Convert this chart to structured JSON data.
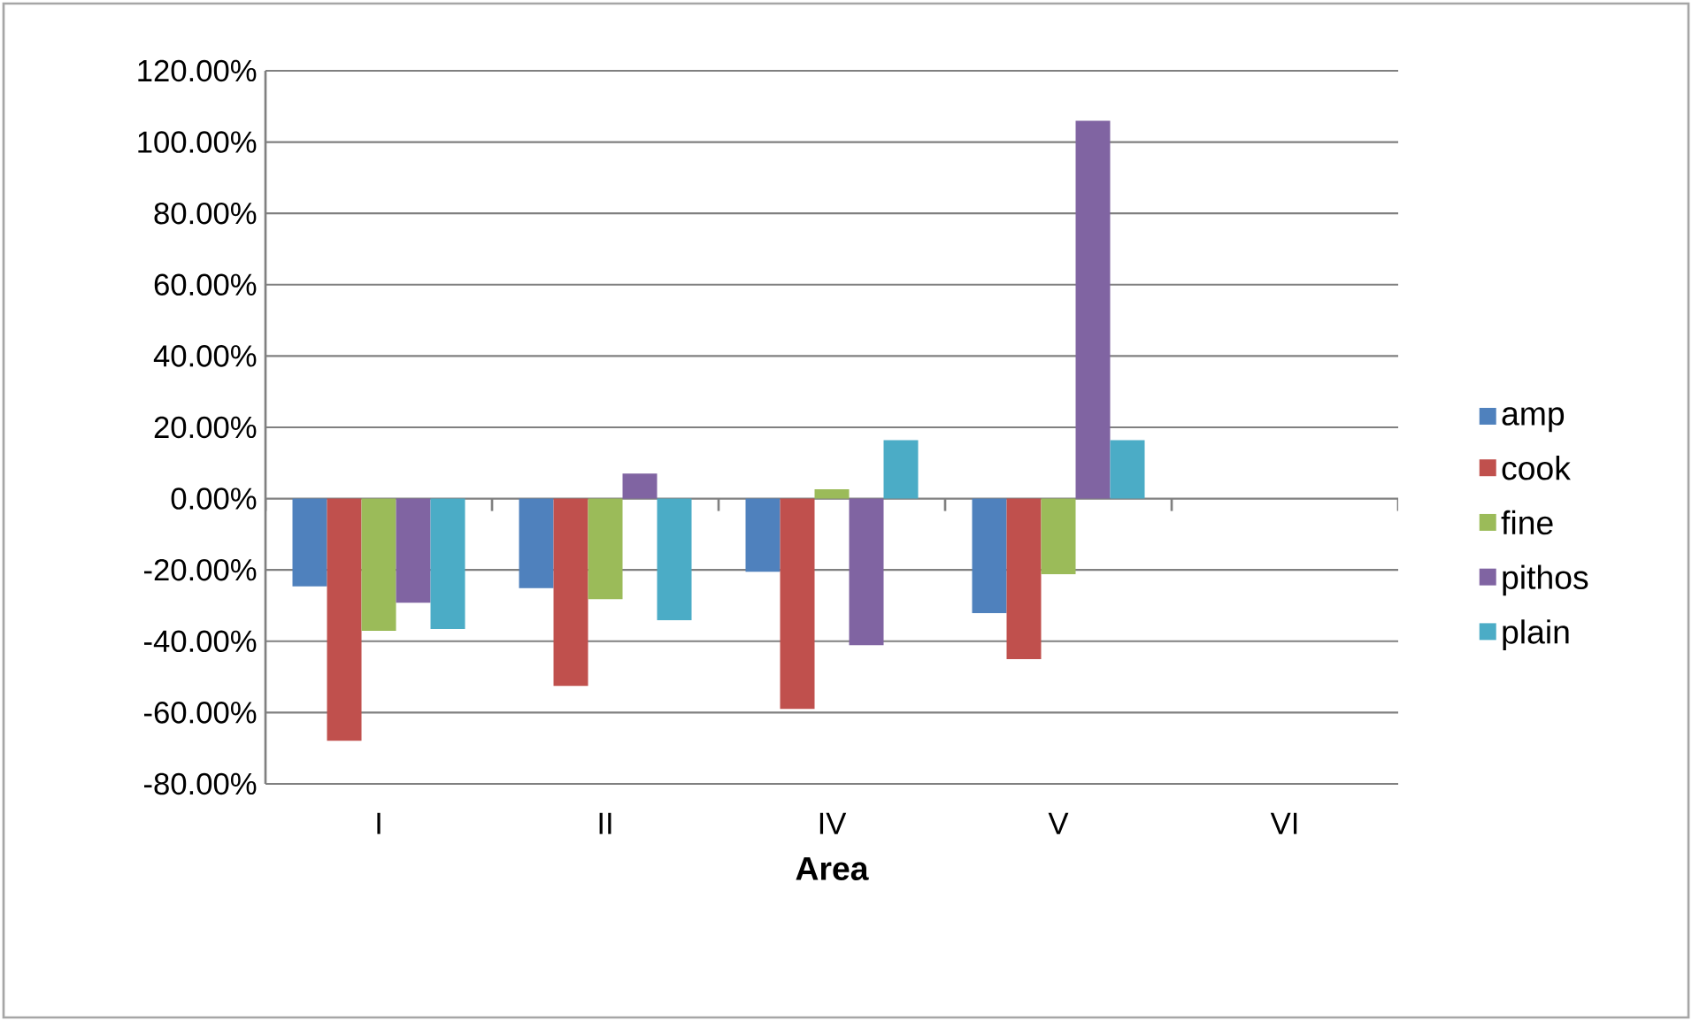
{
  "chart_data": {
    "type": "bar",
    "xlabel": "Area",
    "categories": [
      "I",
      "II",
      "IV",
      "V",
      "VI"
    ],
    "series": [
      {
        "name": "amp",
        "color": "#4f81bd",
        "values": [
          -24.6,
          -25.1,
          -20.5,
          -32.1,
          null
        ]
      },
      {
        "name": "cook",
        "color": "#c0504d",
        "values": [
          -67.9,
          -52.5,
          -59,
          -45,
          null
        ]
      },
      {
        "name": "fine",
        "color": "#9bbb59",
        "values": [
          -37.1,
          -28.2,
          2.6,
          -21.2,
          null
        ]
      },
      {
        "name": "pithos",
        "color": "#8064a2",
        "values": [
          -29.2,
          7,
          -41.1,
          106,
          null
        ]
      },
      {
        "name": "plain",
        "color": "#4bacc6",
        "values": [
          -36.6,
          -34.1,
          16.4,
          16.4,
          null
        ]
      }
    ],
    "ylim": [
      -80,
      120
    ],
    "yticks": [
      {
        "value": -80,
        "label": "-80.00%"
      },
      {
        "value": -60,
        "label": "-60.00%"
      },
      {
        "value": -40,
        "label": "-40.00%"
      },
      {
        "value": -20,
        "label": "-20.00%"
      },
      {
        "value": 0,
        "label": "0.00%"
      },
      {
        "value": 20,
        "label": "20.00%"
      },
      {
        "value": 40,
        "label": "40.00%"
      },
      {
        "value": 60,
        "label": "60.00%"
      },
      {
        "value": 80,
        "label": "80.00%"
      },
      {
        "value": 100,
        "label": "100.00%"
      },
      {
        "value": 120,
        "label": "120.00%"
      }
    ],
    "grid": "y",
    "legend": "right"
  }
}
